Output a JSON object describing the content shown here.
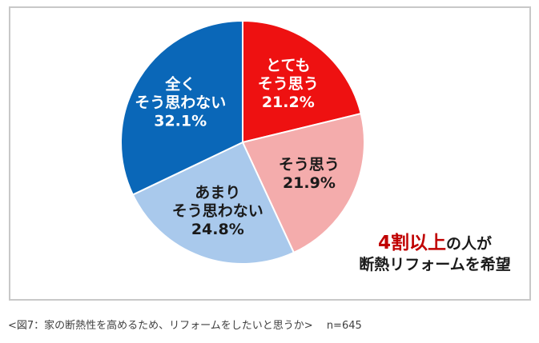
{
  "chart_data": {
    "type": "pie",
    "start_angle_deg": 0,
    "direction": "clockwise",
    "slices": [
      {
        "label_lines": [
          "とても",
          "そう思う"
        ],
        "value": 21.2,
        "value_label": "21.2%",
        "color": "#ee1111",
        "label_color": "#ffffff"
      },
      {
        "label_lines": [
          "そう思う"
        ],
        "value": 21.9,
        "value_label": "21.9%",
        "color": "#f4acac",
        "label_color": "#1a1a1a"
      },
      {
        "label_lines": [
          "あまり",
          "そう思わない"
        ],
        "value": 24.8,
        "value_label": "24.8%",
        "color": "#a9c9ec",
        "label_color": "#1a1a1a"
      },
      {
        "label_lines": [
          "全く",
          "そう思わない"
        ],
        "value": 32.1,
        "value_label": "32.1%",
        "color": "#0a67b8",
        "label_color": "#ffffff"
      }
    ],
    "slice_border_color": "#ffffff"
  },
  "callout": {
    "emphasis": "4割以上",
    "line1_rest": "の人が",
    "line2": "断熱リフォームを希望",
    "emphasis_color": "#c00000"
  },
  "caption": {
    "title": "<図7：家の断熱性を高めるため、リフォームをしたいと思うか>",
    "n_label": "n=645"
  }
}
